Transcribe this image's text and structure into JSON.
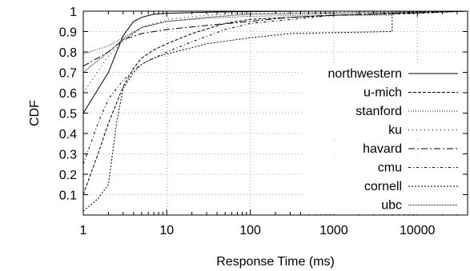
{
  "chart_data": {
    "type": "line",
    "title": "",
    "xlabel": "Response Time (ms)",
    "ylabel": "CDF",
    "xscale": "log",
    "xlim": [
      1,
      40000
    ],
    "ylim": [
      0,
      1
    ],
    "x_ticks": [
      {
        "value": 1,
        "label": "1"
      },
      {
        "value": 10,
        "label": "10"
      },
      {
        "value": 100,
        "label": "100"
      },
      {
        "value": 1000,
        "label": "1000"
      },
      {
        "value": 10000,
        "label": "10000"
      }
    ],
    "y_ticks": [
      {
        "value": 0.1,
        "label": "0.1"
      },
      {
        "value": 0.2,
        "label": "0.2"
      },
      {
        "value": 0.3,
        "label": "0.3"
      },
      {
        "value": 0.4,
        "label": "0.4"
      },
      {
        "value": 0.5,
        "label": "0.5"
      },
      {
        "value": 0.6,
        "label": "0.6"
      },
      {
        "value": 0.7,
        "label": "0.7"
      },
      {
        "value": 0.8,
        "label": "0.8"
      },
      {
        "value": 0.9,
        "label": "0.9"
      },
      {
        "value": 1,
        "label": "1"
      }
    ],
    "grid": true,
    "legend_position": "right",
    "series": [
      {
        "name": "northwestern",
        "dash": "",
        "x": [
          1,
          2,
          3,
          4,
          5,
          7,
          10,
          30,
          100,
          1000,
          40000
        ],
        "y": [
          0.5,
          0.7,
          0.88,
          0.95,
          0.97,
          0.985,
          0.99,
          0.995,
          0.998,
          1.0,
          1.0
        ]
      },
      {
        "name": "u-mich",
        "dash": "4,2",
        "x": [
          1,
          1.5,
          2,
          3,
          4,
          5,
          7,
          10,
          20,
          50,
          100,
          1000,
          10000,
          40000
        ],
        "y": [
          0.1,
          0.3,
          0.45,
          0.63,
          0.72,
          0.77,
          0.81,
          0.84,
          0.89,
          0.94,
          0.96,
          0.98,
          0.99,
          1.0
        ]
      },
      {
        "name": "stanford",
        "dash": "1,2",
        "x": [
          1,
          2,
          3,
          5,
          10,
          30,
          100,
          500,
          1000,
          5000,
          5000,
          40000
        ],
        "y": [
          0.79,
          0.83,
          0.87,
          0.92,
          0.95,
          0.965,
          0.975,
          0.98,
          0.98,
          0.98,
          1.0,
          1.0
        ]
      },
      {
        "name": "ku",
        "dash": "1,4",
        "x": [
          1,
          2,
          3,
          5,
          10,
          30,
          100,
          1000,
          40000
        ],
        "y": [
          0.6,
          0.78,
          0.85,
          0.92,
          0.96,
          0.98,
          0.99,
          0.995,
          1.0
        ]
      },
      {
        "name": "havard",
        "dash": "8,3,2,3",
        "x": [
          1,
          2,
          3,
          5,
          10,
          30,
          100,
          300,
          1000,
          40000
        ],
        "y": [
          0.73,
          0.8,
          0.86,
          0.89,
          0.91,
          0.93,
          0.95,
          0.97,
          0.98,
          1.0
        ]
      },
      {
        "name": "cmu",
        "dash": "3,3,1,3",
        "x": [
          1,
          1.5,
          2,
          3,
          4,
          5,
          7,
          10,
          20,
          50,
          100,
          1000,
          10000,
          40000
        ],
        "y": [
          0.25,
          0.45,
          0.57,
          0.66,
          0.71,
          0.74,
          0.77,
          0.8,
          0.85,
          0.91,
          0.94,
          0.98,
          0.995,
          1.0
        ]
      },
      {
        "name": "cornell",
        "dash": "2,2",
        "x": [
          1,
          1.5,
          2,
          2.5,
          3,
          4,
          5,
          7,
          10,
          30,
          100,
          300,
          1000,
          5000,
          5000,
          40000
        ],
        "y": [
          0.02,
          0.08,
          0.15,
          0.45,
          0.62,
          0.7,
          0.74,
          0.77,
          0.79,
          0.84,
          0.87,
          0.89,
          0.895,
          0.9,
          1.0,
          1.0
        ]
      },
      {
        "name": "ubc",
        "dash": "1,1",
        "x": [
          1,
          2,
          3,
          5,
          10,
          30,
          100,
          1000,
          40000
        ],
        "y": [
          0.7,
          0.8,
          0.86,
          0.92,
          0.95,
          0.97,
          0.985,
          0.99,
          1.0
        ]
      }
    ]
  }
}
